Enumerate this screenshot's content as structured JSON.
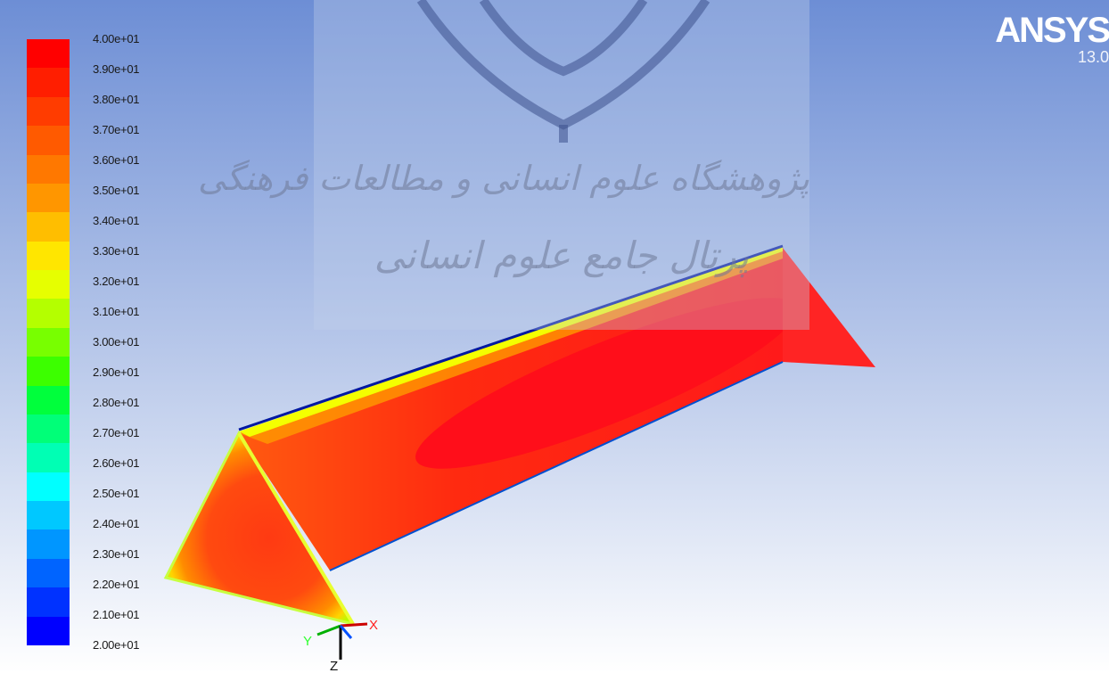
{
  "legend": {
    "labels": [
      "4.00e+01",
      "3.90e+01",
      "3.80e+01",
      "3.70e+01",
      "3.60e+01",
      "3.50e+01",
      "3.40e+01",
      "3.30e+01",
      "3.20e+01",
      "3.10e+01",
      "3.00e+01",
      "2.90e+01",
      "2.80e+01",
      "2.70e+01",
      "2.60e+01",
      "2.50e+01",
      "2.40e+01",
      "2.30e+01",
      "2.20e+01",
      "2.10e+01",
      "2.00e+01"
    ],
    "colors": [
      "#ff0000",
      "#ff1e00",
      "#ff3c00",
      "#ff5a00",
      "#ff7800",
      "#ff9600",
      "#ffbe00",
      "#ffe600",
      "#e6ff00",
      "#b4ff00",
      "#78ff00",
      "#3cff00",
      "#00ff3c",
      "#00ff78",
      "#00ffb4",
      "#00ffff",
      "#00c8ff",
      "#0096ff",
      "#0064ff",
      "#0032ff",
      "#0000ff"
    ],
    "min": 20,
    "max": 40
  },
  "brand": {
    "name": "ANSYS",
    "version": "13.0"
  },
  "watermark": {
    "line1": "پژوهشگاه علوم انسانی و مطالعات فرهنگی",
    "line2": "پرتال جامع علوم انسانی"
  },
  "triad": {
    "x": "X",
    "y": "Y",
    "z": "Z"
  },
  "colors": {
    "bg_top": "#6f8fd6",
    "bg_bottom": "#ffffff",
    "contour_hot": "#ff1a1a"
  }
}
